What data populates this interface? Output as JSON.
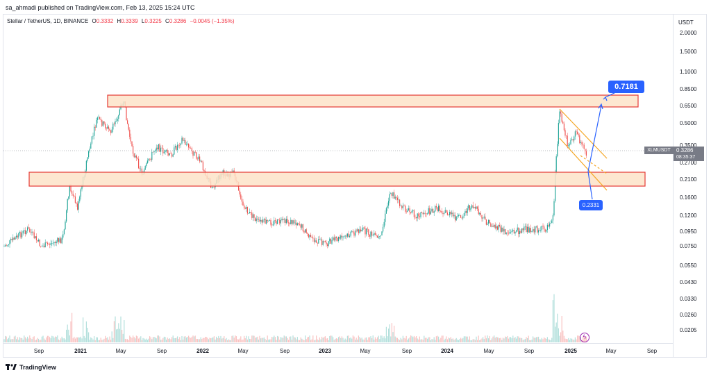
{
  "header": {
    "publisher_text": "sa_ahmadi published on TradingView.com, Feb 13, 2025 15:24 UTC"
  },
  "legend": {
    "symbol_text": "Stellar / TetherUS, 1D, BINANCE",
    "open_label": "O",
    "open_value": "0.3332",
    "high_label": "H",
    "high_value": "0.3339",
    "low_label": "L",
    "low_value": "0.3225",
    "close_label": "C",
    "close_value": "0.3286",
    "change_value": "−0.0045 (−1.35%)"
  },
  "price_axis": {
    "currency": "USDT",
    "ticks": [
      "2.0000",
      "1.5000",
      "1.1000",
      "0.8500",
      "0.6500",
      "0.5000",
      "0.3500",
      "0.2700",
      "0.2100",
      "0.1600",
      "0.1200",
      "0.0950",
      "0.0750",
      "0.0550",
      "0.0430",
      "0.0330",
      "0.0260",
      "0.0205"
    ]
  },
  "price_tag": {
    "symbol": "XLMUSDT",
    "price": "0.3286",
    "countdown": "08:35:37"
  },
  "time_axis": {
    "ticks": [
      "Sep",
      "2021",
      "May",
      "Sep",
      "2022",
      "May",
      "Sep",
      "2023",
      "May",
      "Sep",
      "2024",
      "May",
      "Sep",
      "2025",
      "May",
      "Sep"
    ]
  },
  "annotations": {
    "target_value": "0.7181",
    "support_value": "0.2331"
  },
  "footer": {
    "brand_text": "TradingView"
  },
  "chart_data": {
    "type": "candlestick",
    "symbol": "XLMUSDT",
    "interval": "1D",
    "exchange": "BINANCE",
    "scale": "log",
    "ohlc_last": {
      "open": 0.3332,
      "high": 0.3339,
      "low": 0.3225,
      "close": 0.3286
    },
    "resistance_zone": [
      0.65,
      0.78
    ],
    "support_zone": [
      0.19,
      0.23
    ],
    "target": 0.7181,
    "support_level": 0.2331,
    "colors": {
      "up": "#26a69a",
      "down": "#ef5350",
      "zone_fill": "#fde3c8",
      "zone_border": "#e53935",
      "channel": "#f5a623",
      "arrow": "#2962ff"
    }
  }
}
